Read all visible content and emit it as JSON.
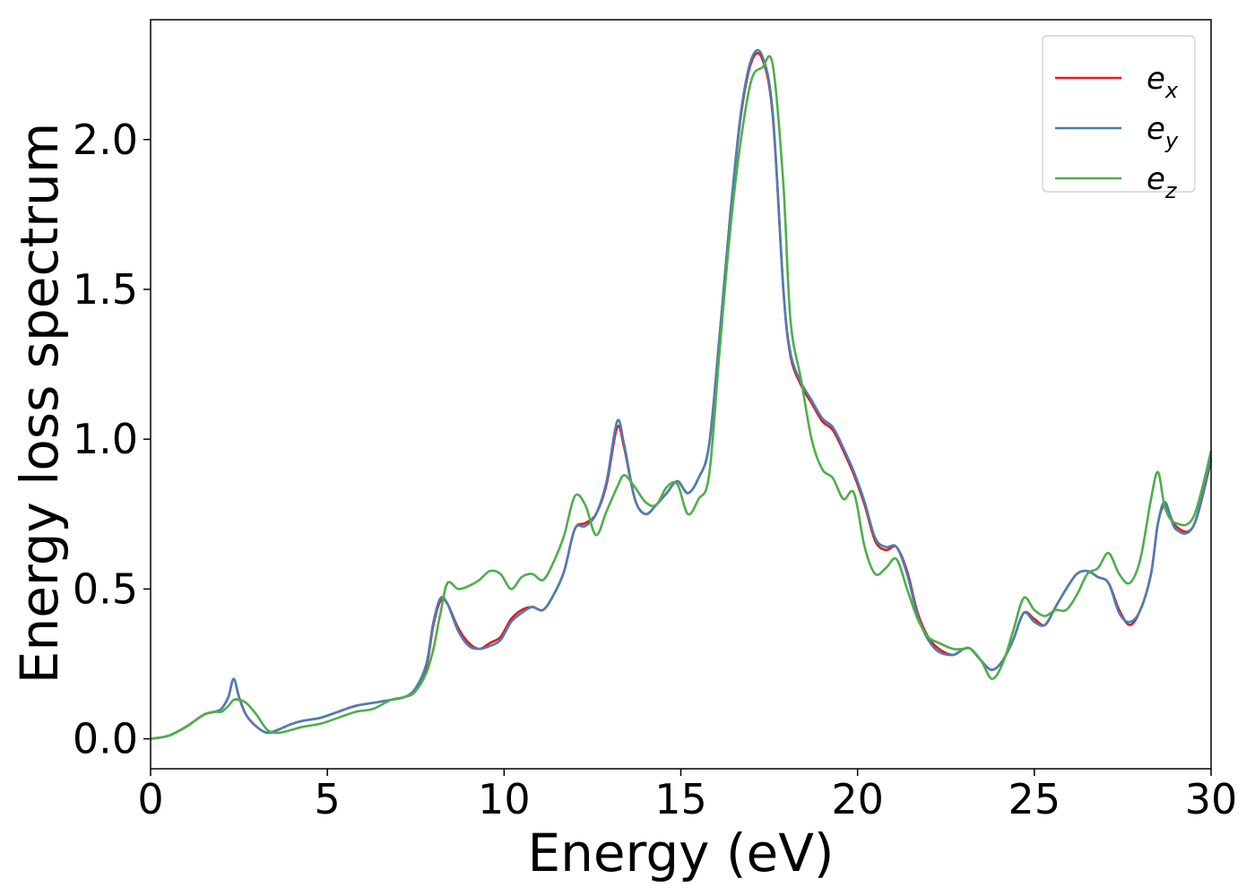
{
  "chart_data": {
    "type": "line",
    "title": "",
    "xlabel": "Energy (eV)",
    "ylabel": "Energy loss spectrum",
    "xlim": [
      0,
      30
    ],
    "ylim": [
      -0.1,
      2.4
    ],
    "xticks": [
      0,
      5,
      10,
      15,
      20,
      25,
      30
    ],
    "xtick_labels": [
      "0",
      "5",
      "10",
      "15",
      "20",
      "25",
      "30"
    ],
    "yticks": [
      0.0,
      0.5,
      1.0,
      1.5,
      2.0
    ],
    "ytick_labels": [
      "0.0",
      "0.5",
      "1.0",
      "1.5",
      "2.0"
    ],
    "grid": false,
    "legend_position": "top-right",
    "series": [
      {
        "name": "e",
        "subscript": "x",
        "color": "#e41a1c",
        "x": [
          0,
          0.5,
          1.0,
          1.5,
          1.8,
          2.0,
          2.2,
          2.35,
          2.5,
          2.7,
          3.0,
          3.3,
          3.6,
          4.0,
          4.3,
          4.8,
          5.3,
          5.8,
          6.3,
          6.8,
          7.2,
          7.5,
          7.8,
          8.0,
          8.2,
          8.4,
          8.7,
          9.0,
          9.3,
          9.6,
          9.9,
          10.2,
          10.5,
          10.8,
          11.1,
          11.4,
          11.7,
          12.0,
          12.3,
          12.6,
          12.9,
          13.2,
          13.4,
          13.7,
          14.0,
          14.3,
          14.6,
          14.9,
          15.2,
          15.5,
          15.8,
          16.1,
          16.4,
          16.7,
          17.0,
          17.3,
          17.6,
          17.9,
          18.1,
          18.4,
          18.7,
          19.0,
          19.3,
          19.6,
          19.9,
          20.2,
          20.5,
          20.8,
          21.1,
          21.4,
          21.7,
          22.0,
          22.3,
          22.7,
          23.0,
          23.2,
          23.5,
          23.8,
          24.1,
          24.4,
          24.7,
          25.0,
          25.3,
          25.6,
          25.9,
          26.2,
          26.5,
          26.8,
          27.1,
          27.4,
          27.7,
          28.0,
          28.3,
          28.5,
          28.7,
          29.0,
          29.5,
          30.0
        ],
        "y": [
          0.0,
          0.01,
          0.04,
          0.08,
          0.09,
          0.1,
          0.14,
          0.2,
          0.14,
          0.08,
          0.04,
          0.02,
          0.03,
          0.05,
          0.06,
          0.07,
          0.09,
          0.11,
          0.12,
          0.13,
          0.14,
          0.16,
          0.24,
          0.38,
          0.46,
          0.45,
          0.37,
          0.32,
          0.3,
          0.32,
          0.34,
          0.4,
          0.43,
          0.44,
          0.43,
          0.48,
          0.56,
          0.7,
          0.72,
          0.75,
          0.85,
          1.04,
          0.97,
          0.8,
          0.75,
          0.78,
          0.82,
          0.86,
          0.82,
          0.87,
          0.98,
          1.35,
          1.75,
          2.08,
          2.26,
          2.27,
          2.08,
          1.5,
          1.28,
          1.18,
          1.12,
          1.06,
          1.03,
          0.96,
          0.88,
          0.78,
          0.66,
          0.63,
          0.64,
          0.56,
          0.42,
          0.34,
          0.3,
          0.28,
          0.3,
          0.3,
          0.26,
          0.23,
          0.26,
          0.33,
          0.42,
          0.4,
          0.38,
          0.44,
          0.5,
          0.55,
          0.56,
          0.54,
          0.52,
          0.43,
          0.38,
          0.43,
          0.55,
          0.72,
          0.78,
          0.71,
          0.71,
          0.93
        ]
      },
      {
        "name": "e",
        "subscript": "y",
        "color": "#4a7eb5",
        "x": [
          0,
          0.5,
          1.0,
          1.5,
          1.8,
          2.0,
          2.2,
          2.35,
          2.5,
          2.7,
          3.0,
          3.3,
          3.6,
          4.0,
          4.3,
          4.8,
          5.3,
          5.8,
          6.3,
          6.8,
          7.2,
          7.5,
          7.8,
          8.0,
          8.2,
          8.4,
          8.7,
          9.0,
          9.3,
          9.6,
          9.9,
          10.2,
          10.5,
          10.8,
          11.1,
          11.4,
          11.7,
          12.0,
          12.3,
          12.6,
          12.9,
          13.2,
          13.4,
          13.7,
          14.0,
          14.3,
          14.6,
          14.9,
          15.2,
          15.5,
          15.8,
          16.1,
          16.4,
          16.7,
          17.0,
          17.3,
          17.6,
          17.9,
          18.1,
          18.4,
          18.7,
          19.0,
          19.3,
          19.6,
          19.9,
          20.2,
          20.5,
          20.8,
          21.1,
          21.4,
          21.7,
          22.0,
          22.3,
          22.7,
          23.0,
          23.2,
          23.5,
          23.8,
          24.1,
          24.4,
          24.7,
          25.0,
          25.3,
          25.6,
          25.9,
          26.2,
          26.5,
          26.8,
          27.1,
          27.4,
          27.7,
          28.0,
          28.3,
          28.5,
          28.7,
          29.0,
          29.5,
          30.0
        ],
        "y": [
          0.0,
          0.01,
          0.04,
          0.08,
          0.09,
          0.1,
          0.14,
          0.2,
          0.14,
          0.08,
          0.04,
          0.02,
          0.03,
          0.05,
          0.06,
          0.07,
          0.09,
          0.11,
          0.12,
          0.13,
          0.14,
          0.17,
          0.25,
          0.39,
          0.47,
          0.45,
          0.36,
          0.31,
          0.3,
          0.31,
          0.33,
          0.39,
          0.42,
          0.44,
          0.43,
          0.48,
          0.56,
          0.7,
          0.71,
          0.75,
          0.86,
          1.06,
          0.98,
          0.8,
          0.75,
          0.78,
          0.82,
          0.86,
          0.82,
          0.87,
          0.98,
          1.35,
          1.75,
          2.09,
          2.27,
          2.28,
          2.09,
          1.5,
          1.29,
          1.19,
          1.13,
          1.07,
          1.04,
          0.97,
          0.89,
          0.79,
          0.67,
          0.64,
          0.64,
          0.55,
          0.41,
          0.33,
          0.29,
          0.28,
          0.3,
          0.3,
          0.26,
          0.23,
          0.26,
          0.33,
          0.42,
          0.39,
          0.38,
          0.44,
          0.5,
          0.55,
          0.56,
          0.54,
          0.52,
          0.42,
          0.39,
          0.43,
          0.55,
          0.72,
          0.79,
          0.7,
          0.71,
          0.94
        ]
      },
      {
        "name": "e",
        "subscript": "z",
        "color": "#4daf4a",
        "x": [
          0,
          0.5,
          1.0,
          1.5,
          1.8,
          2.0,
          2.2,
          2.35,
          2.5,
          2.7,
          3.0,
          3.3,
          3.6,
          4.0,
          4.3,
          4.8,
          5.3,
          5.8,
          6.3,
          6.8,
          7.2,
          7.5,
          7.8,
          8.0,
          8.2,
          8.4,
          8.7,
          9.0,
          9.3,
          9.6,
          9.9,
          10.2,
          10.5,
          10.8,
          11.1,
          11.4,
          11.7,
          12.0,
          12.3,
          12.6,
          12.9,
          13.2,
          13.4,
          13.7,
          14.0,
          14.3,
          14.6,
          14.9,
          15.2,
          15.5,
          15.8,
          16.1,
          16.4,
          16.7,
          17.0,
          17.3,
          17.6,
          17.9,
          18.1,
          18.4,
          18.7,
          19.0,
          19.3,
          19.6,
          19.9,
          20.2,
          20.5,
          20.8,
          21.1,
          21.4,
          21.7,
          22.0,
          22.3,
          22.7,
          23.0,
          23.2,
          23.5,
          23.8,
          24.1,
          24.4,
          24.7,
          25.0,
          25.3,
          25.6,
          25.9,
          26.2,
          26.5,
          26.8,
          27.1,
          27.4,
          27.7,
          28.0,
          28.3,
          28.5,
          28.7,
          29.0,
          29.5,
          30.0
        ],
        "y": [
          0.0,
          0.01,
          0.04,
          0.08,
          0.09,
          0.09,
          0.11,
          0.13,
          0.13,
          0.12,
          0.08,
          0.03,
          0.02,
          0.03,
          0.04,
          0.05,
          0.07,
          0.09,
          0.1,
          0.13,
          0.14,
          0.16,
          0.22,
          0.3,
          0.42,
          0.52,
          0.5,
          0.51,
          0.53,
          0.56,
          0.55,
          0.5,
          0.54,
          0.55,
          0.53,
          0.59,
          0.68,
          0.81,
          0.78,
          0.68,
          0.76,
          0.84,
          0.88,
          0.84,
          0.79,
          0.78,
          0.84,
          0.85,
          0.75,
          0.8,
          0.88,
          1.3,
          1.7,
          2.0,
          2.2,
          2.24,
          2.25,
          1.85,
          1.4,
          1.2,
          1.0,
          0.9,
          0.87,
          0.8,
          0.82,
          0.64,
          0.55,
          0.57,
          0.6,
          0.5,
          0.4,
          0.34,
          0.32,
          0.3,
          0.3,
          0.3,
          0.26,
          0.2,
          0.25,
          0.36,
          0.47,
          0.43,
          0.41,
          0.43,
          0.43,
          0.48,
          0.55,
          0.57,
          0.62,
          0.55,
          0.52,
          0.6,
          0.8,
          0.89,
          0.77,
          0.72,
          0.74,
          0.96
        ]
      }
    ]
  }
}
